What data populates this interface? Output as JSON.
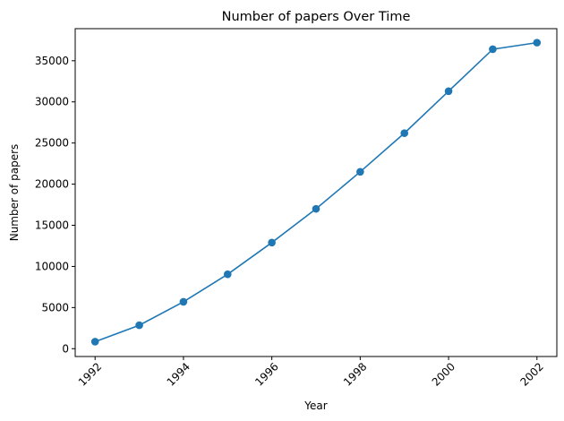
{
  "chart_data": {
    "type": "line",
    "title": "Number of papers Over Time",
    "xlabel": "Year",
    "ylabel": "Number of papers",
    "xlim": [
      1991.55,
      2002.45
    ],
    "ylim": [
      -950,
      38900
    ],
    "x_ticks": [
      1992,
      1994,
      1996,
      1998,
      2000,
      2002
    ],
    "y_ticks": [
      0,
      5000,
      10000,
      15000,
      20000,
      25000,
      30000,
      35000
    ],
    "x_tick_rotation_deg": 45,
    "grid": false,
    "legend": "none",
    "series": [
      {
        "color": "#1f77b4",
        "marker": "circle",
        "x": [
          1992,
          1993,
          1994,
          1995,
          1996,
          1997,
          1998,
          1999,
          2000,
          2001,
          2002
        ],
        "y": [
          850,
          2850,
          5700,
          9050,
          12900,
          17000,
          21500,
          26200,
          31300,
          36400,
          37200
        ]
      }
    ]
  }
}
